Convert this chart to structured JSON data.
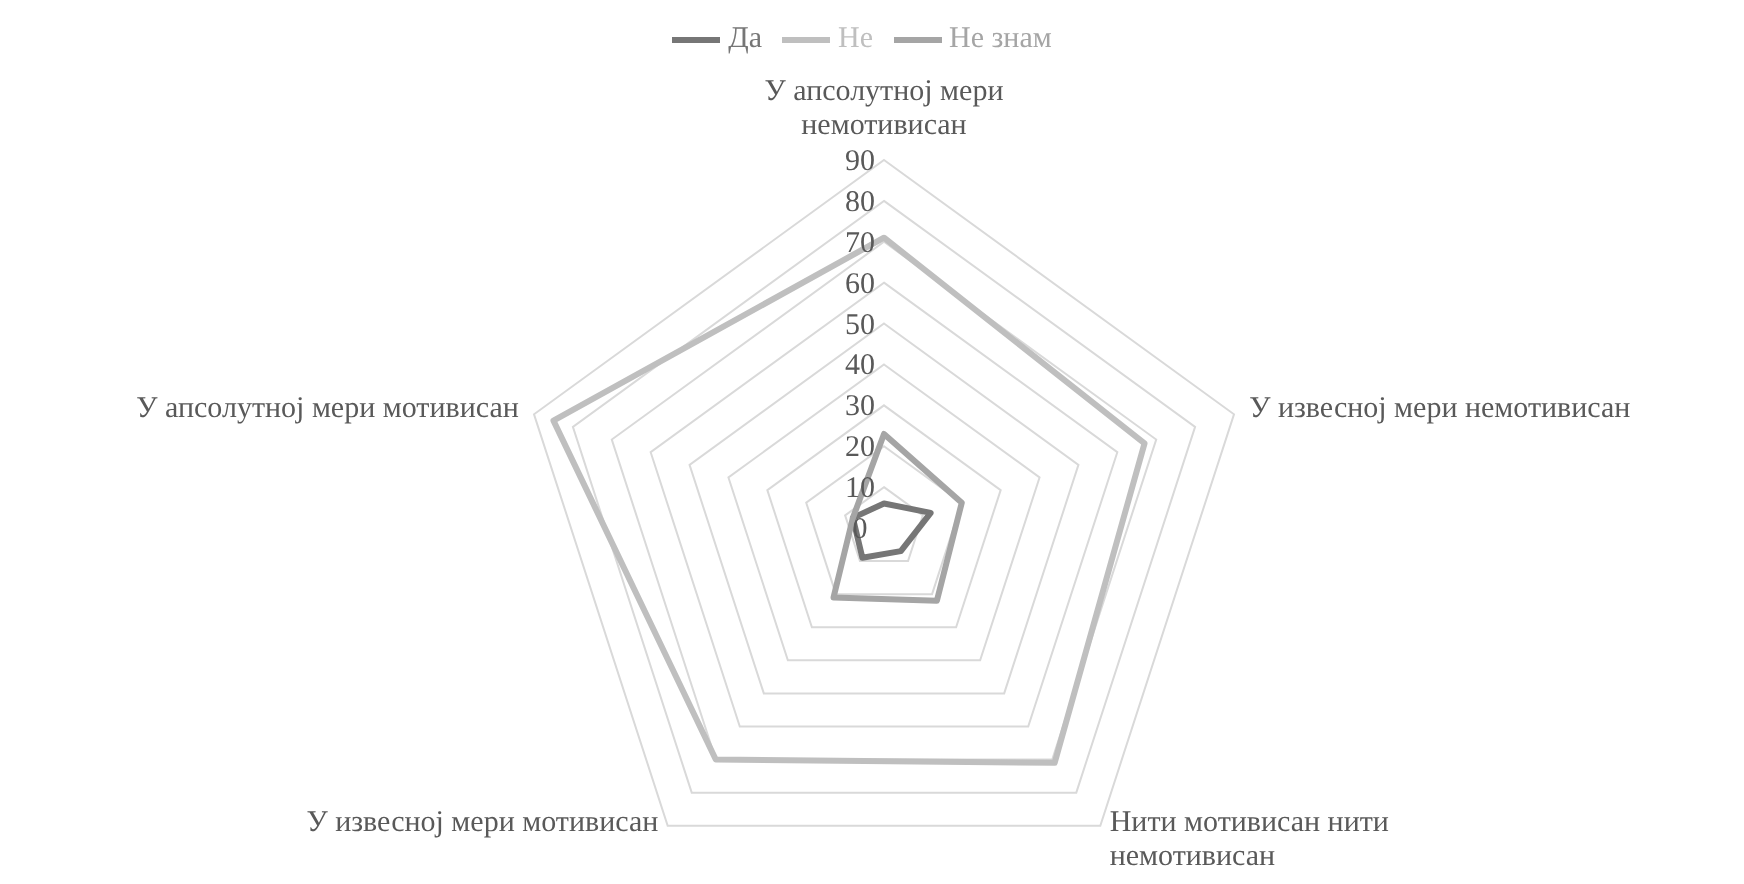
{
  "chart_data": {
    "type": "radar",
    "categories": [
      "У апсолутној мери немотивисан",
      "У извесној мери немотивисан",
      "Нити мотивисан нити немотивисан",
      "У извесној мери мотивисан",
      "У апсолутној мери мотивисан"
    ],
    "series": [
      {
        "name": "Да",
        "color": "#767676",
        "values": [
          6,
          12,
          7,
          9,
          8
        ]
      },
      {
        "name": "Не",
        "color": "#bfbfbf",
        "values": [
          71,
          67,
          71,
          70,
          85
        ]
      },
      {
        "name": "Не знам",
        "color": "#a5a5a5",
        "values": [
          23,
          20,
          22,
          21,
          8
        ]
      }
    ],
    "ylim": [
      0,
      90
    ],
    "yticks": [
      0,
      10,
      20,
      30,
      40,
      50,
      60,
      70,
      80,
      90
    ],
    "grid": true,
    "legend": "top",
    "marker": "none",
    "line_style": "solid"
  }
}
